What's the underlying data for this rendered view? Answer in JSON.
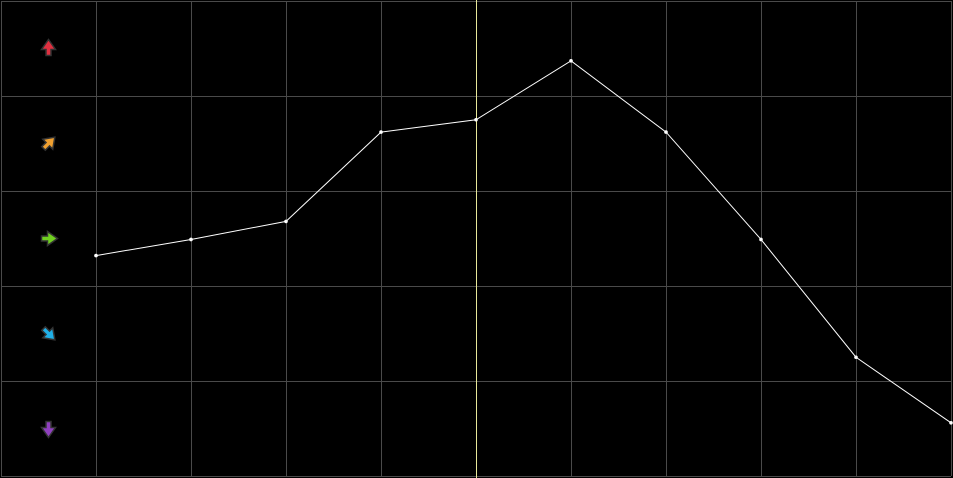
{
  "colors": {
    "background": "#000000",
    "grid": "#4a4a4a",
    "line": "#ffffff",
    "cursor": "#e8e89a"
  },
  "chart_data": {
    "type": "line",
    "title": "",
    "xlabel": "",
    "ylabel": "",
    "grid": true,
    "x": [
      1,
      2,
      3,
      4,
      5,
      6,
      7,
      8,
      9,
      10
    ],
    "xlim": [
      0,
      10
    ],
    "ylim": [
      0,
      5
    ],
    "series": [
      {
        "values": [
          2.32,
          2.49,
          2.68,
          3.62,
          3.75,
          4.37,
          3.62,
          2.49,
          1.25,
          0.56
        ]
      }
    ],
    "cursor_x": 5,
    "row_icons": [
      {
        "icon": "arrow-up-icon",
        "color": "#e03040",
        "angle": 0
      },
      {
        "icon": "arrow-up-right-icon",
        "color": "#f0a030",
        "angle": 45
      },
      {
        "icon": "arrow-right-icon",
        "color": "#70d020",
        "angle": 90
      },
      {
        "icon": "arrow-down-right-icon",
        "color": "#20b0e8",
        "angle": 135
      },
      {
        "icon": "arrow-down-icon",
        "color": "#9040c0",
        "angle": 180
      }
    ]
  }
}
